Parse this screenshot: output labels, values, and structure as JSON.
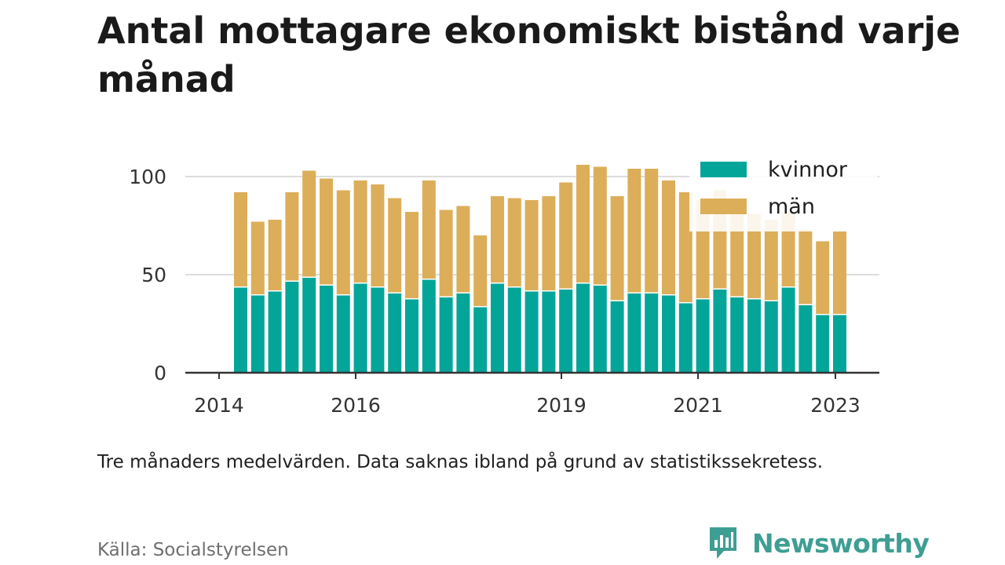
{
  "title": "Antal mottagare ekonomiskt bistånd varje månad",
  "note": "Tre månaders medelvärden. Data saknas ibland på grund av statistikssekretess.",
  "source": "Källa: Socialstyrelsen",
  "brand": "Newsworthy",
  "colors": {
    "kvinnor": "#04a599",
    "man": "#dcae5a",
    "grid": "#dddddd",
    "axis": "#333333",
    "brand": "#3f9e93"
  },
  "chart_data": {
    "type": "bar",
    "stacked": true,
    "x_ticks": [
      "2014",
      "2016",
      "2019",
      "2021",
      "2023"
    ],
    "y_ticks": [
      "0",
      "50",
      "100"
    ],
    "ylim": [
      0,
      110
    ],
    "legend": {
      "position": "top-right"
    },
    "series": [
      {
        "name": "kvinnor",
        "values": [
          44,
          40,
          42,
          47,
          49,
          45,
          40,
          46,
          44,
          41,
          38,
          48,
          39,
          41,
          34,
          46,
          44,
          42,
          42,
          43,
          46,
          45,
          37,
          41,
          41,
          40,
          36,
          38,
          43,
          39,
          38,
          37,
          44,
          35,
          30,
          30
        ]
      },
      {
        "name": "män",
        "values": [
          48,
          37,
          36,
          45,
          54,
          54,
          53,
          52,
          52,
          48,
          44,
          50,
          44,
          44,
          36,
          44,
          45,
          46,
          48,
          54,
          60,
          60,
          53,
          63,
          63,
          58,
          56,
          50,
          50,
          43,
          43,
          41,
          38,
          38,
          37,
          42
        ]
      }
    ]
  }
}
